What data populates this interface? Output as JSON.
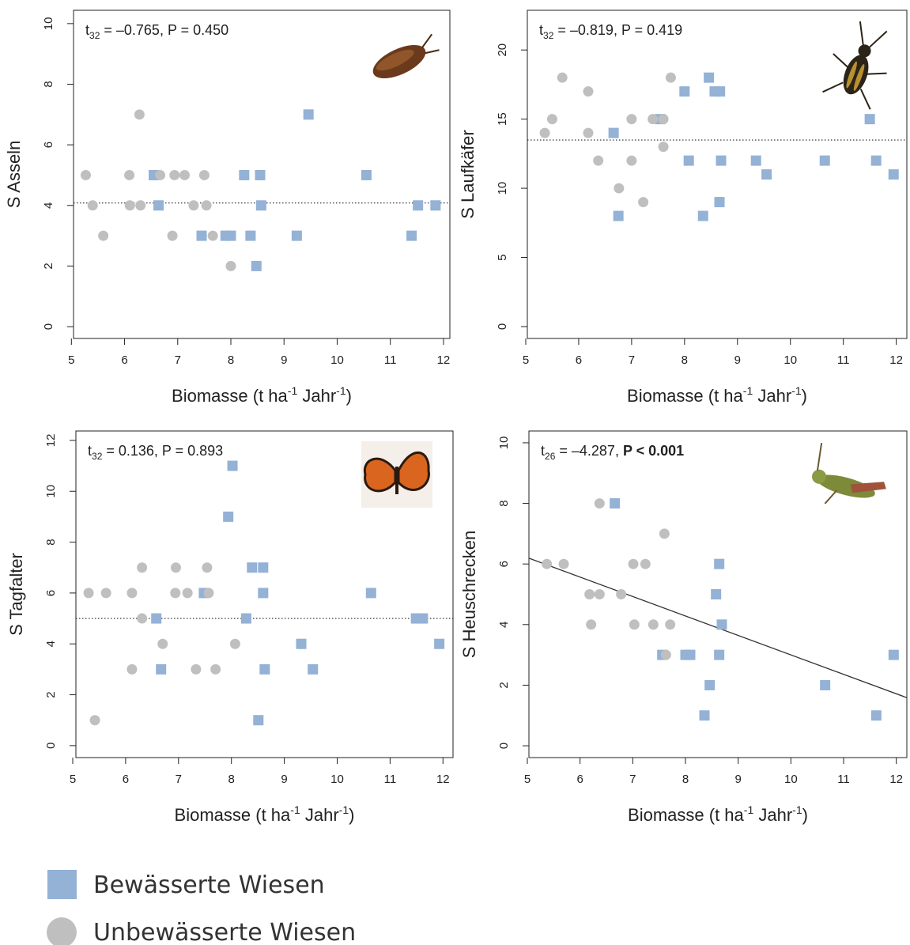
{
  "chart_data": [
    {
      "type": "scatter",
      "ylabel": "S Asseln",
      "xlabel": [
        "Biomasse (t ha",
        "-1",
        " Jahr",
        "-1",
        ")"
      ],
      "annotation": {
        "symbol": "t",
        "df": "32",
        "text": " = –0.765, P = 0.450"
      },
      "xlim": [
        5.04,
        12.12
      ],
      "ylim": [
        -0.39,
        10.44
      ],
      "xticks": [
        5,
        6,
        7,
        8,
        9,
        10,
        11,
        12
      ],
      "yticks": [
        0,
        2,
        4,
        6,
        8,
        10
      ],
      "hline": 4.08,
      "series": [
        {
          "color": "#94b1d6",
          "marker": "square",
          "x": [
            6.55,
            6.64,
            7.45,
            7.9,
            8.0,
            8.25,
            8.37,
            8.55,
            8.48,
            8.57,
            9.46,
            9.24,
            10.55,
            11.4,
            11.52,
            11.85
          ],
          "values": [
            5,
            4,
            3,
            3,
            3,
            5,
            3,
            5,
            2,
            4,
            7,
            3,
            5,
            3,
            4,
            4
          ]
        },
        {
          "color": "#bfbfbf",
          "marker": "circle",
          "x": [
            5.27,
            5.4,
            5.6,
            6.09,
            6.1,
            6.28,
            6.3,
            6.67,
            6.9,
            6.94,
            7.13,
            7.3,
            7.5,
            7.54,
            7.66,
            8.0
          ],
          "values": [
            5,
            4,
            3,
            5,
            4,
            7,
            4,
            5,
            3,
            5,
            5,
            4,
            5,
            4,
            3,
            2
          ]
        }
      ]
    },
    {
      "type": "scatter",
      "ylabel": "S Laufkäfer",
      "xlabel": [
        "Biomasse (t ha",
        "-1",
        " Jahr",
        "-1",
        ")"
      ],
      "annotation": {
        "symbol": "t",
        "df": "32",
        "text": " = –0.819, P = 0.419"
      },
      "xlim": [
        5.03,
        12.2
      ],
      "ylim": [
        -0.86,
        22.87
      ],
      "xticks": [
        5,
        6,
        7,
        8,
        9,
        10,
        11,
        12
      ],
      "yticks": [
        0,
        5,
        10,
        15,
        20
      ],
      "hline": 13.49,
      "series": [
        {
          "color": "#94b1d6",
          "marker": "square",
          "x": [
            6.66,
            6.75,
            7.54,
            8.0,
            8.08,
            8.35,
            8.46,
            8.57,
            8.67,
            8.66,
            8.69,
            9.35,
            9.55,
            10.65,
            11.5,
            11.62,
            11.95
          ],
          "values": [
            14,
            8,
            15,
            17,
            12,
            8,
            18,
            17,
            17,
            9,
            12,
            12,
            11,
            12,
            15,
            12,
            11
          ]
        },
        {
          "color": "#bfbfbf",
          "marker": "circle",
          "x": [
            5.36,
            5.5,
            5.69,
            6.18,
            6.18,
            6.37,
            6.76,
            7.0,
            7.0,
            7.22,
            7.4,
            7.6,
            7.6,
            7.74
          ],
          "values": [
            14,
            15,
            18,
            17,
            14,
            12,
            10,
            15,
            12,
            9,
            15,
            15,
            13,
            18
          ]
        }
      ]
    },
    {
      "type": "scatter",
      "ylabel": "S Tagfalter",
      "xlabel": [
        "Biomasse (t ha",
        "-1",
        " Jahr",
        "-1",
        ")"
      ],
      "annotation": {
        "symbol": "t",
        "df": "32",
        "text": " = 0.136, P = 0.893"
      },
      "xlim": [
        5.06,
        12.19
      ],
      "ylim": [
        -0.47,
        12.37
      ],
      "xticks": [
        5,
        6,
        7,
        8,
        9,
        10,
        11,
        12
      ],
      "yticks": [
        0,
        2,
        4,
        6,
        8,
        10,
        12
      ],
      "hline": 5.0,
      "series": [
        {
          "color": "#94b1d6",
          "marker": "square",
          "x": [
            6.58,
            6.67,
            7.48,
            7.94,
            8.02,
            8.28,
            8.39,
            8.6,
            8.6,
            8.63,
            8.51,
            9.32,
            9.54,
            10.64,
            11.49,
            11.62,
            11.93
          ],
          "values": [
            5,
            3,
            6,
            9,
            11,
            5,
            7,
            7,
            6,
            3,
            1,
            4,
            3,
            6,
            5,
            5,
            4
          ]
        },
        {
          "color": "#bfbfbf",
          "marker": "circle",
          "x": [
            5.3,
            5.42,
            5.63,
            6.12,
            6.12,
            6.31,
            6.31,
            6.7,
            6.95,
            6.94,
            7.17,
            7.33,
            7.54,
            7.57,
            7.7,
            8.07
          ],
          "values": [
            6,
            1,
            6,
            6,
            3,
            7,
            5,
            4,
            7,
            6,
            6,
            3,
            7,
            6,
            3,
            4
          ]
        }
      ]
    },
    {
      "type": "scatter",
      "ylabel": "S Heuschrecken",
      "xlabel": [
        "Biomasse (t ha",
        "-1",
        " Jahr",
        "-1",
        ")"
      ],
      "annotation": {
        "symbol": "t",
        "df": "26",
        "text": " = –4.287, ",
        "bold": "P < 0.001"
      },
      "xlim": [
        5.03,
        12.2
      ],
      "ylim": [
        -0.39,
        10.39
      ],
      "xticks": [
        5,
        6,
        7,
        8,
        9,
        10,
        11,
        12
      ],
      "yticks": [
        0,
        2,
        4,
        6,
        8,
        10
      ],
      "fit": {
        "intercept": 9.42,
        "slope": -0.642
      },
      "series": [
        {
          "color": "#94b1d6",
          "marker": "square",
          "x": [
            6.66,
            7.56,
            8.0,
            8.09,
            8.36,
            8.46,
            8.58,
            8.64,
            8.69,
            8.64,
            10.65,
            11.62,
            11.95
          ],
          "values": [
            8,
            3,
            3,
            3,
            1,
            2,
            5,
            6,
            4,
            3,
            2,
            1,
            3
          ]
        },
        {
          "color": "#bfbfbf",
          "marker": "circle",
          "x": [
            5.37,
            5.69,
            6.18,
            6.21,
            6.37,
            6.37,
            6.78,
            7.01,
            7.03,
            7.24,
            7.39,
            7.6,
            7.63,
            7.71
          ],
          "values": [
            6,
            6,
            5,
            4,
            8,
            5,
            5,
            6,
            4,
            6,
            4,
            7,
            3,
            4
          ]
        }
      ]
    }
  ],
  "legend": [
    {
      "name": "Bewässerte Wiesen",
      "color": "#94b1d6",
      "marker": "square"
    },
    {
      "name": "Unbewässerte Wiesen",
      "color": "#bfbfbf",
      "marker": "circle"
    }
  ]
}
